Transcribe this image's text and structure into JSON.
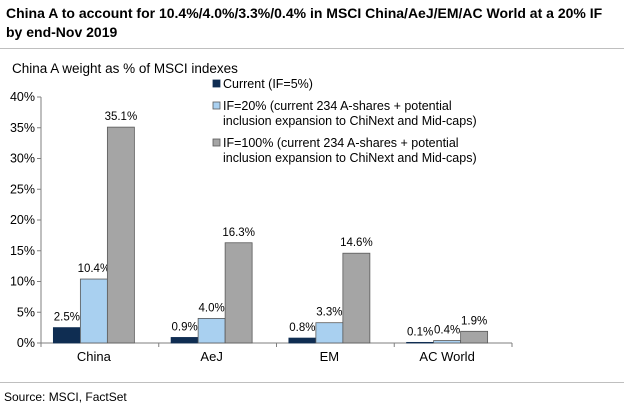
{
  "title": "China A to account for 10.4%/4.0%/3.3%/0.4% in MSCI China/AeJ/EM/AC World at a 20% IF by end-Nov 2019",
  "source": "Source: MSCI, FactSet",
  "colors": {
    "current": "#0f2d52",
    "if20": "#a9d0f0",
    "if100": "#a5a5a5",
    "axis": "#7f7f7f"
  },
  "chart_data": {
    "type": "bar",
    "title": "China A weight as % of MSCI indexes",
    "xlabel": "",
    "ylabel": "",
    "ylim": [
      0,
      40
    ],
    "yticks": [
      0,
      5,
      10,
      15,
      20,
      25,
      30,
      35,
      40
    ],
    "ytick_labels": [
      "0%",
      "5%",
      "10%",
      "15%",
      "20%",
      "25%",
      "30%",
      "35%",
      "40%"
    ],
    "categories": [
      "China",
      "AeJ",
      "EM",
      "AC World"
    ],
    "grid": false,
    "legend_position": "top-center",
    "series": [
      {
        "name": "Current (IF=5%)",
        "values": [
          2.5,
          0.9,
          0.8,
          0.1
        ],
        "labels": [
          "2.5%",
          "0.9%",
          "0.8%",
          "0.1%"
        ],
        "color": "#0f2d52",
        "legend_lines": [
          "Current (IF=5%)"
        ]
      },
      {
        "name": "IF=20% (current 234 A-shares + potential inclusion expansion to ChiNext and Mid-caps)",
        "values": [
          10.4,
          4.0,
          3.3,
          0.4
        ],
        "labels": [
          "10.4%",
          "4.0%",
          "3.3%",
          "0.4%"
        ],
        "color": "#a9d0f0",
        "legend_lines": [
          "IF=20% (current 234 A-shares + potential",
          "inclusion expansion to ChiNext and Mid-caps)"
        ]
      },
      {
        "name": "IF=100% (current 234 A-shares + potential inclusion expansion to ChiNext and Mid-caps)",
        "values": [
          35.1,
          16.3,
          14.6,
          1.9
        ],
        "labels": [
          "35.1%",
          "16.3%",
          "14.6%",
          "1.9%"
        ],
        "color": "#a5a5a5",
        "legend_lines": [
          "IF=100% (current 234 A-shares + potential",
          "inclusion expansion to ChiNext and Mid-caps)"
        ]
      }
    ]
  }
}
